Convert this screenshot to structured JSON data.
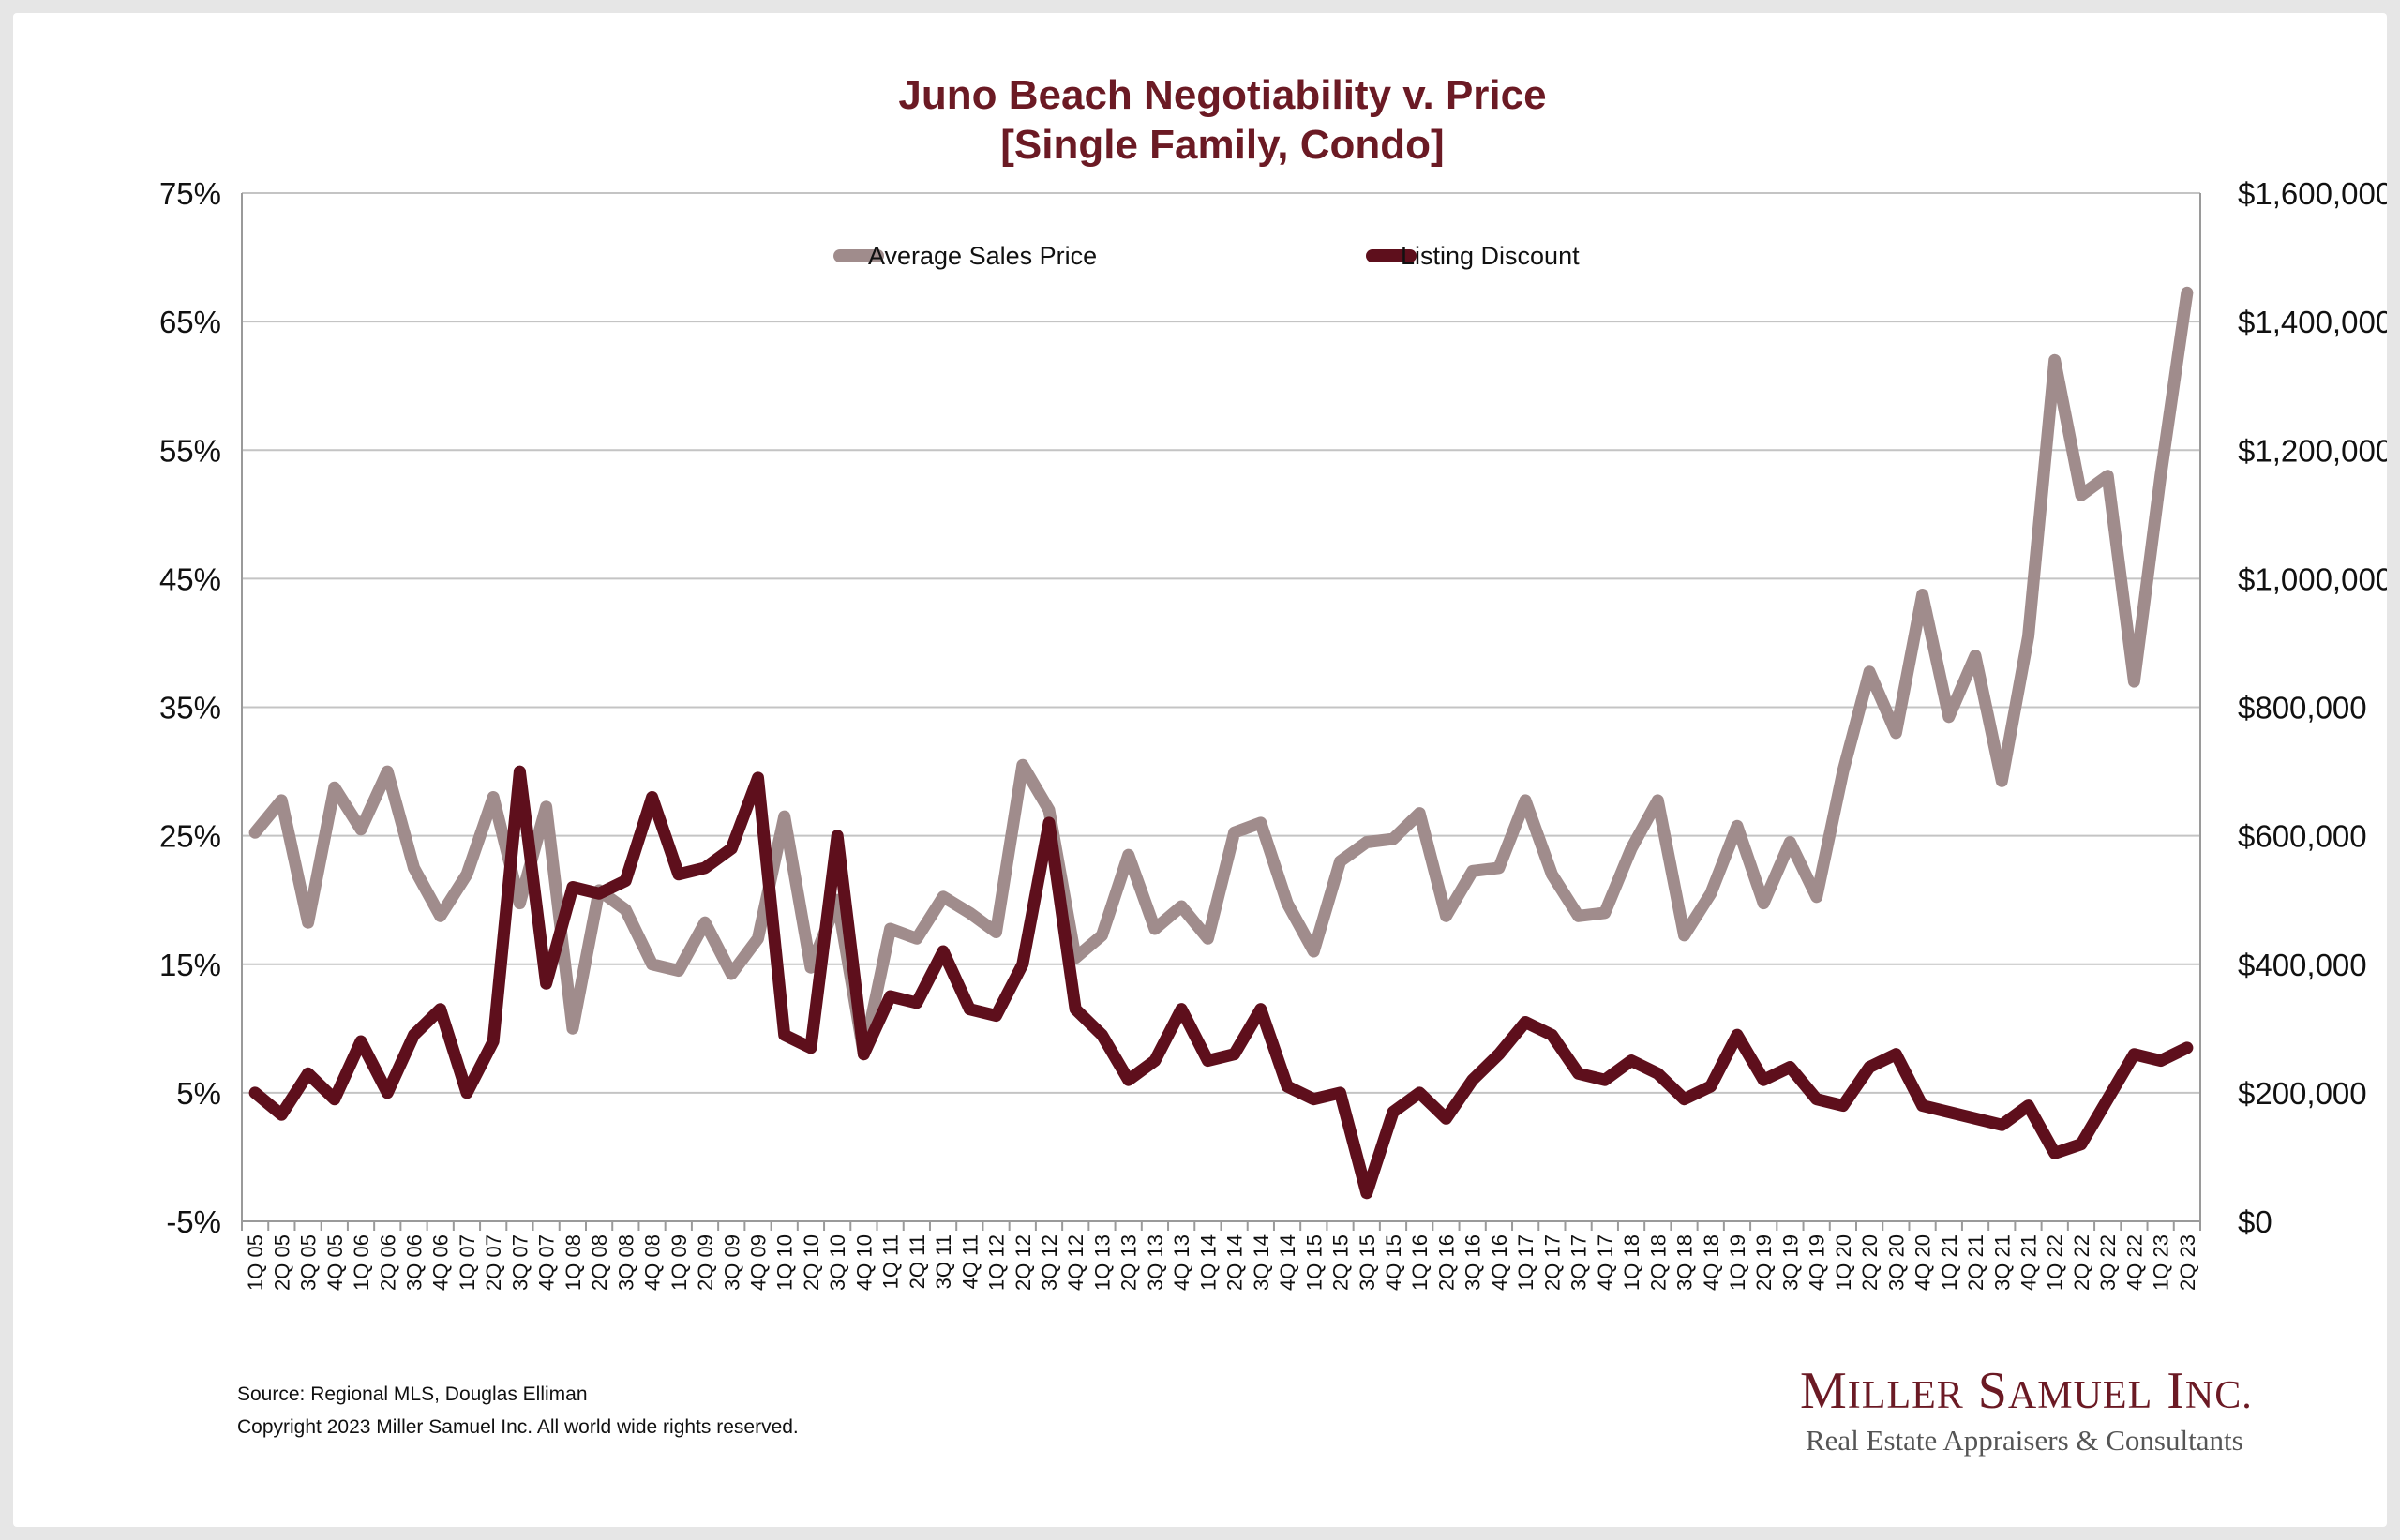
{
  "chart_data": {
    "type": "line",
    "title_line1": "Juno Beach Negotiability v. Price",
    "title_line2": "[Single Family, Condo]",
    "categories": [
      "1Q 05",
      "2Q 05",
      "3Q 05",
      "4Q 05",
      "1Q 06",
      "2Q 06",
      "3Q 06",
      "4Q 06",
      "1Q 07",
      "2Q 07",
      "3Q 07",
      "4Q 07",
      "1Q 08",
      "2Q 08",
      "3Q 08",
      "4Q 08",
      "1Q 09",
      "2Q 09",
      "3Q 09",
      "4Q 09",
      "1Q 10",
      "2Q 10",
      "3Q 10",
      "4Q 10",
      "1Q 11",
      "2Q 11",
      "3Q 11",
      "4Q 11",
      "1Q 12",
      "2Q 12",
      "3Q 12",
      "4Q 12",
      "1Q 13",
      "2Q 13",
      "3Q 13",
      "4Q 13",
      "1Q 14",
      "2Q 14",
      "3Q 14",
      "4Q 14",
      "1Q 15",
      "2Q 15",
      "3Q 15",
      "4Q 15",
      "1Q 16",
      "2Q 16",
      "3Q 16",
      "4Q 16",
      "1Q 17",
      "2Q 17",
      "3Q 17",
      "4Q 17",
      "1Q 18",
      "2Q 18",
      "3Q 18",
      "4Q 18",
      "1Q 19",
      "2Q 19",
      "3Q 19",
      "4Q 19",
      "1Q 20",
      "2Q 20",
      "3Q 20",
      "4Q 20",
      "1Q 21",
      "2Q 21",
      "3Q 21",
      "4Q 21",
      "1Q 22",
      "2Q 22",
      "3Q 22",
      "4Q 22",
      "1Q 23",
      "2Q 23"
    ],
    "left_axis": {
      "min": -5,
      "max": 75,
      "step": 10,
      "ticks": [
        "-5%",
        "5%",
        "15%",
        "25%",
        "35%",
        "45%",
        "55%",
        "65%",
        "75%"
      ]
    },
    "right_axis": {
      "min": 0,
      "max": 1600000,
      "step": 200000,
      "ticks": [
        "$0",
        "$200,000",
        "$400,000",
        "$600,000",
        "$800,000",
        "$1,000,000",
        "$1,200,000",
        "$1,400,000",
        "$1,600,000"
      ]
    },
    "grid": true,
    "legend_position": "top",
    "series": [
      {
        "name": "Average Sales Price",
        "axis": "right",
        "color": "#a08c8c",
        "values": [
          605000,
          655000,
          465000,
          675000,
          610000,
          700000,
          550000,
          475000,
          540000,
          660000,
          495000,
          645000,
          300000,
          515000,
          485000,
          400000,
          390000,
          465000,
          385000,
          440000,
          630000,
          395000,
          500000,
          260000,
          455000,
          440000,
          505000,
          480000,
          450000,
          710000,
          640000,
          410000,
          445000,
          570000,
          455000,
          490000,
          440000,
          605000,
          620000,
          495000,
          420000,
          560000,
          590000,
          595000,
          635000,
          475000,
          545000,
          550000,
          655000,
          540000,
          475000,
          480000,
          580000,
          655000,
          445000,
          510000,
          615000,
          495000,
          590000,
          505000,
          700000,
          855000,
          760000,
          975000,
          785000,
          880000,
          685000,
          910000,
          1340000,
          1130000,
          1160000,
          840000,
          1160000,
          1445000
        ]
      },
      {
        "name": "Listing Discount",
        "axis": "left",
        "color": "#5e0f1c",
        "values": [
          5.0,
          3.3,
          6.5,
          4.5,
          9.0,
          5.0,
          9.5,
          11.5,
          5.0,
          9.0,
          30.0,
          13.5,
          21.0,
          20.5,
          21.5,
          28.0,
          22.0,
          22.5,
          24.0,
          29.5,
          9.5,
          8.5,
          25.0,
          8.0,
          12.5,
          12.0,
          16.0,
          11.5,
          11.0,
          15.0,
          26.0,
          11.5,
          9.5,
          6.0,
          7.5,
          11.5,
          7.5,
          8.0,
          11.5,
          5.5,
          4.5,
          5.0,
          -2.8,
          3.5,
          5.0,
          3.0,
          6.0,
          8.0,
          10.5,
          9.5,
          6.5,
          6.0,
          7.5,
          6.5,
          4.5,
          5.5,
          9.5,
          6.0,
          7.0,
          4.5,
          4.0,
          7.0,
          8.0,
          4.0,
          3.5,
          3.0,
          2.5,
          4.0,
          0.3,
          1.0,
          4.5,
          8.0,
          7.5,
          8.5
        ]
      }
    ]
  },
  "footer": {
    "source": "Source: Regional MLS, Douglas Elliman",
    "copyright": "Copyright 2023 Miller Samuel Inc.  All world wide rights reserved."
  },
  "brand": {
    "name": "Miller Samuel Inc.",
    "tagline": "Real Estate Appraisers & Consultants"
  }
}
